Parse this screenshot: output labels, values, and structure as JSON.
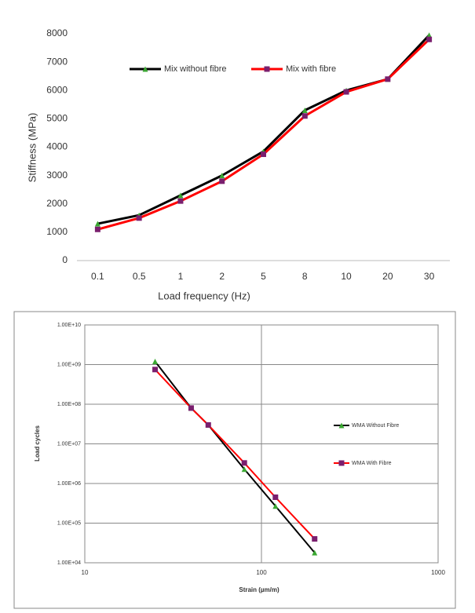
{
  "chart_data": [
    {
      "type": "line",
      "xlabel": "Load frequency (Hz)",
      "ylabel": "Stiffness (MPa)",
      "categories": [
        "0.1",
        "0.5",
        "1",
        "2",
        "5",
        "8",
        "10",
        "20",
        "30"
      ],
      "series": [
        {
          "name": "Mix without fibre",
          "color": "#000000",
          "marker_color": "#3aa832",
          "marker": "triangle",
          "values": [
            1300,
            1600,
            2300,
            3000,
            3850,
            5300,
            6000,
            6400,
            7950
          ]
        },
        {
          "name": "Mix with fibre",
          "color": "#ff0000",
          "marker_color": "#7a1f6e",
          "marker": "square",
          "values": [
            1100,
            1500,
            2100,
            2800,
            3750,
            5100,
            5950,
            6400,
            7800
          ]
        }
      ],
      "ylim": [
        0,
        8000
      ],
      "yticks": [
        0,
        1000,
        2000,
        3000,
        4000,
        5000,
        6000,
        7000,
        8000
      ],
      "grid": false
    },
    {
      "type": "loglog",
      "xlabel": "Strain (µm/m)",
      "ylabel": "Load cycles",
      "x": [
        25,
        40,
        50,
        80,
        120,
        200
      ],
      "series": [
        {
          "name": "WMA Without Fibre",
          "color": "#000000",
          "marker_color": "#3aa832",
          "marker": "triangle",
          "values": [
            1200000000,
            80000000,
            30000000,
            2300000,
            270000,
            18000
          ]
        },
        {
          "name": "WMA With Fibre",
          "color": "#ff0000",
          "marker_color": "#7a1f6e",
          "marker": "square",
          "values": [
            750000000,
            80000000,
            30000000,
            3300000,
            450000,
            40000
          ]
        }
      ],
      "xlim": [
        10,
        1000
      ],
      "xticks": [
        10,
        100,
        1000
      ],
      "ylim": [
        10000,
        10000000000
      ],
      "yticks": [
        {
          "value": 10000,
          "label": "1.00E+04"
        },
        {
          "value": 100000,
          "label": "1.00E+05"
        },
        {
          "value": 1000000,
          "label": "1.00E+06"
        },
        {
          "value": 10000000,
          "label": "1.00E+07"
        },
        {
          "value": 100000000,
          "label": "1.00E+08"
        },
        {
          "value": 1000000000,
          "label": "1.00E+09"
        },
        {
          "value": 10000000000,
          "label": "1.00E+10"
        }
      ],
      "log_x": true,
      "log_y": true,
      "grid": true
    }
  ]
}
